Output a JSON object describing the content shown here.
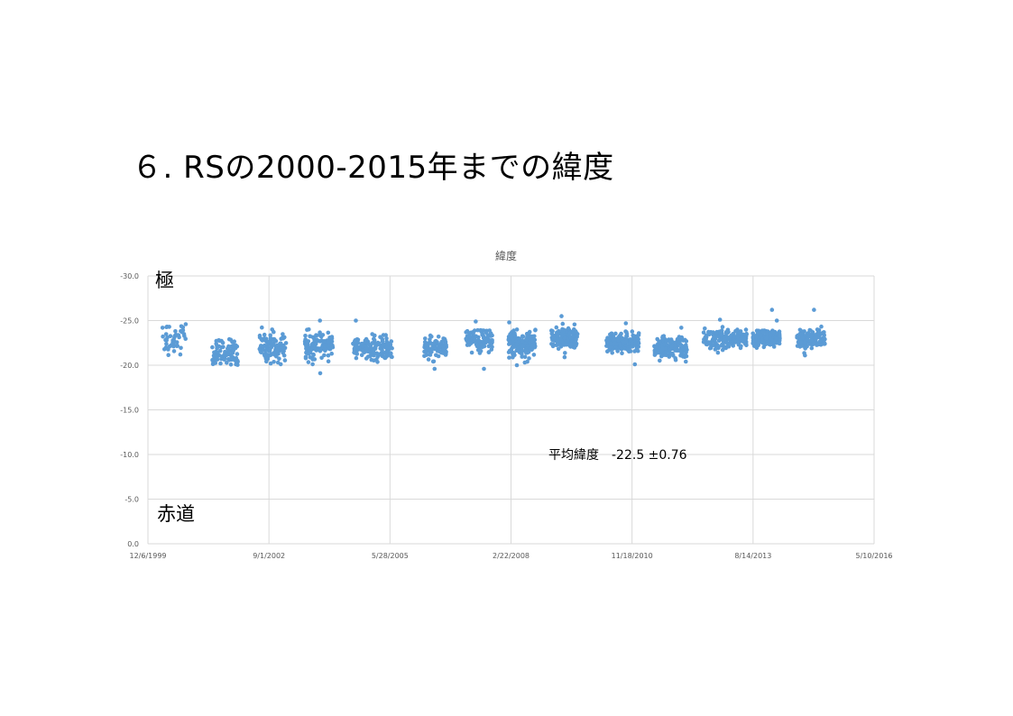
{
  "slide": {
    "title": "６. RSの2000-2015年までの緯度"
  },
  "chart_data": {
    "type": "scatter",
    "title": "緯度",
    "xlabel": "",
    "ylabel": "",
    "x_axis": {
      "type": "date",
      "min": "1999-12-06",
      "max": "2016-05-10",
      "tick_labels": [
        "12/6/1999",
        "9/1/2002",
        "5/28/2005",
        "2/22/2008",
        "11/18/2010",
        "8/14/2013",
        "5/10/2016"
      ]
    },
    "y_axis": {
      "ylim": [
        0,
        -30
      ],
      "reversed": true,
      "tick_values": [
        0,
        -5,
        -10,
        -15,
        -20,
        -25,
        -30
      ],
      "tick_labels": [
        "0.0",
        "-5.0",
        "-10.0",
        "-15.0",
        "-20.0",
        "-25.0",
        "-30.0"
      ]
    },
    "grid": true,
    "legend": "none",
    "series_color": "#5B9BD5",
    "annotations": {
      "top_label": "極",
      "bottom_label": "赤道",
      "mean_text": "平均緯度　-22.5 ±0.76"
    },
    "clusters": [
      {
        "start": "2000-03-15",
        "end": "2000-10-15",
        "mean": -23.0,
        "spread": 0.9,
        "count": 45,
        "outliers": [
          -24.6,
          -21.2
        ]
      },
      {
        "start": "2001-05-20",
        "end": "2001-12-20",
        "mean": -21.4,
        "spread": 0.75,
        "count": 80,
        "outliers": [
          -20.1,
          -22.8
        ]
      },
      {
        "start": "2002-06-15",
        "end": "2003-01-25",
        "mean": -22.0,
        "spread": 0.85,
        "count": 110,
        "outliers": [
          -24.0,
          -20.3
        ]
      },
      {
        "start": "2003-06-25",
        "end": "2004-02-15",
        "mean": -22.2,
        "spread": 0.8,
        "count": 130,
        "outliers": [
          -19.1,
          -25.0
        ]
      },
      {
        "start": "2004-07-15",
        "end": "2005-06-15",
        "mean": -22.0,
        "spread": 0.75,
        "count": 150,
        "outliers": [
          -25.0,
          -20.6
        ]
      },
      {
        "start": "2006-03-05",
        "end": "2006-09-10",
        "mean": -22.0,
        "spread": 0.7,
        "count": 95,
        "outliers": [
          -19.6,
          -23.2
        ]
      },
      {
        "start": "2007-02-15",
        "end": "2007-09-20",
        "mean": -22.8,
        "spread": 0.7,
        "count": 110,
        "outliers": [
          -19.6,
          -24.9
        ]
      },
      {
        "start": "2008-02-01",
        "end": "2008-09-10",
        "mean": -22.3,
        "spread": 0.75,
        "count": 140,
        "outliers": [
          -20.0,
          -24.8
        ]
      },
      {
        "start": "2009-01-20",
        "end": "2009-08-25",
        "mean": -23.0,
        "spread": 0.7,
        "count": 170,
        "outliers": [
          -25.5,
          -20.9
        ]
      },
      {
        "start": "2010-04-20",
        "end": "2011-01-15",
        "mean": -22.5,
        "spread": 0.55,
        "count": 180,
        "outliers": [
          -24.7,
          -20.1
        ]
      },
      {
        "start": "2011-05-20",
        "end": "2012-02-15",
        "mean": -21.9,
        "spread": 0.6,
        "count": 170,
        "outliers": [
          -24.2,
          -20.4
        ]
      },
      {
        "start": "2012-07-01",
        "end": "2013-06-25",
        "mean": -23.0,
        "spread": 0.6,
        "count": 180,
        "outliers": [
          -25.1,
          -21.4
        ]
      },
      {
        "start": "2013-08-10",
        "end": "2014-03-25",
        "mean": -23.0,
        "spread": 0.5,
        "count": 170,
        "outliers": [
          -26.2,
          -25.0
        ]
      },
      {
        "start": "2014-08-10",
        "end": "2015-04-01",
        "mean": -22.9,
        "spread": 0.6,
        "count": 120,
        "outliers": [
          -26.2,
          -21.1
        ]
      }
    ]
  }
}
